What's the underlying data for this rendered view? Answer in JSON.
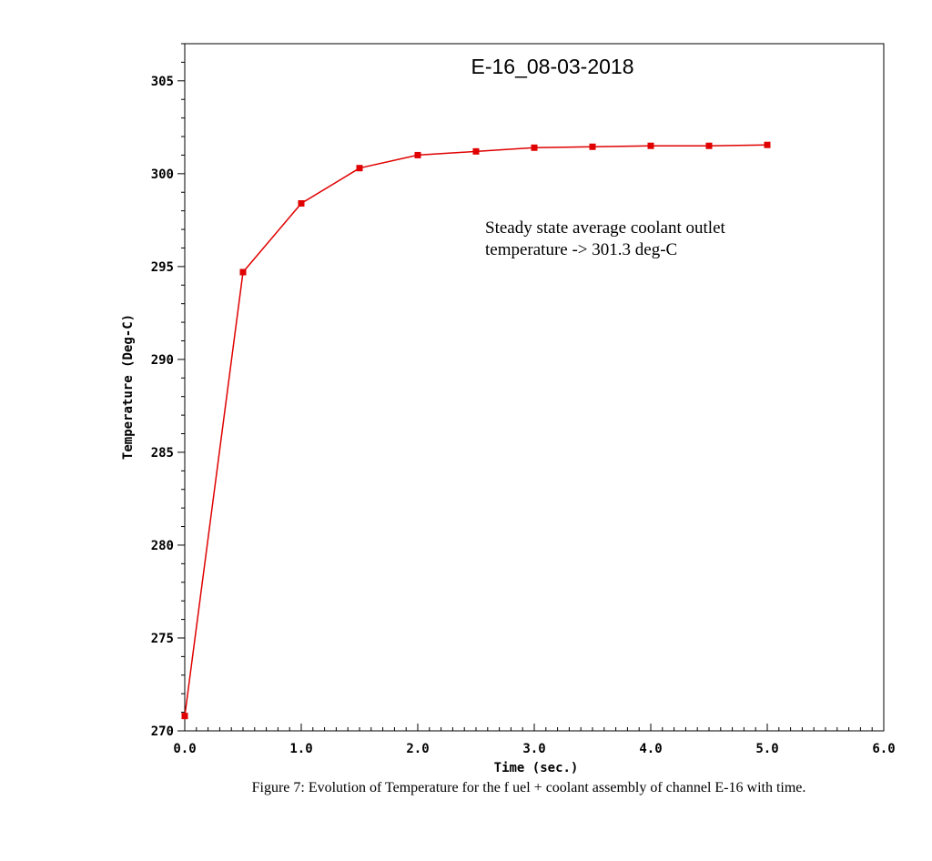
{
  "chart_data": {
    "type": "line",
    "title": "E-16_08-03-2018",
    "xlabel": "Time (sec.)",
    "ylabel": "Temperature (Deg-C)",
    "xlim": [
      0,
      6
    ],
    "ylim": [
      270,
      307
    ],
    "x_ticks": [
      "0.0",
      "1.0",
      "2.0",
      "3.0",
      "4.0",
      "5.0",
      "6.0"
    ],
    "y_ticks": [
      "270",
      "275",
      "280",
      "285",
      "290",
      "295",
      "300",
      "305"
    ],
    "grid": false,
    "legend": "none",
    "series": [
      {
        "color": "#e00000",
        "marker": "square",
        "x": [
          0.0,
          0.5,
          1.0,
          1.5,
          2.0,
          2.5,
          3.0,
          3.5,
          4.0,
          4.5,
          5.0
        ],
        "y": [
          270.8,
          294.7,
          298.4,
          300.3,
          301.0,
          301.2,
          301.4,
          301.45,
          301.5,
          301.5,
          301.55
        ]
      }
    ],
    "annotations": [
      "Steady state average coolant outlet",
      "temperature -> 301.3 deg-C"
    ],
    "caption": "Figure 7: Evolution of Temperature for the f uel + coolant assembly of channel E-16 with time."
  }
}
